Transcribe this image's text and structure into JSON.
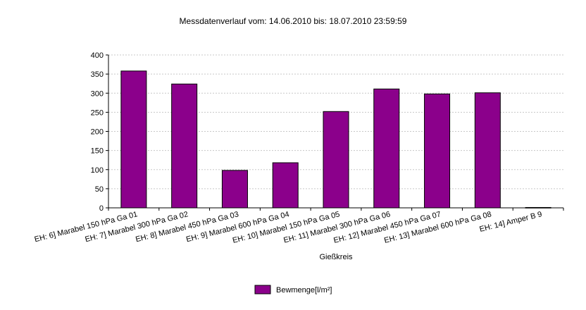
{
  "chart_data": {
    "type": "bar",
    "title": "Messdatenverlauf vom: 14.06.2010 bis: 18.07.2010 23:59:59",
    "xlabel": "Gießkreis",
    "ylabel": "",
    "ylim": [
      0,
      400
    ],
    "yticks": [
      0,
      50,
      100,
      150,
      200,
      250,
      300,
      350,
      400
    ],
    "grid": true,
    "legend_position": "bottom",
    "categories": [
      "EH: 6] Marabel 150 hPa Ga  01",
      "EH: 7] Marabel 300 hPa Ga  02",
      "EH: 8] Marabel 450 hPa Ga  03",
      "EH: 9] Marabel  600 hPa Ga  04",
      "EH: 10] Marabel  150 hPa Ga  05",
      "EH: 11] Marabel  300 hPa Ga  06",
      "EH: 12] Marabel  450 hPa Ga  07",
      "EH: 13] Marabel  600 hPa Ga  08",
      "EH: 14] Amper B 9"
    ],
    "series": [
      {
        "name": "Bewmenge[l/m²]",
        "color": "#8b008b",
        "values": [
          358,
          324,
          98,
          118,
          252,
          311,
          298,
          301,
          1
        ]
      }
    ]
  }
}
